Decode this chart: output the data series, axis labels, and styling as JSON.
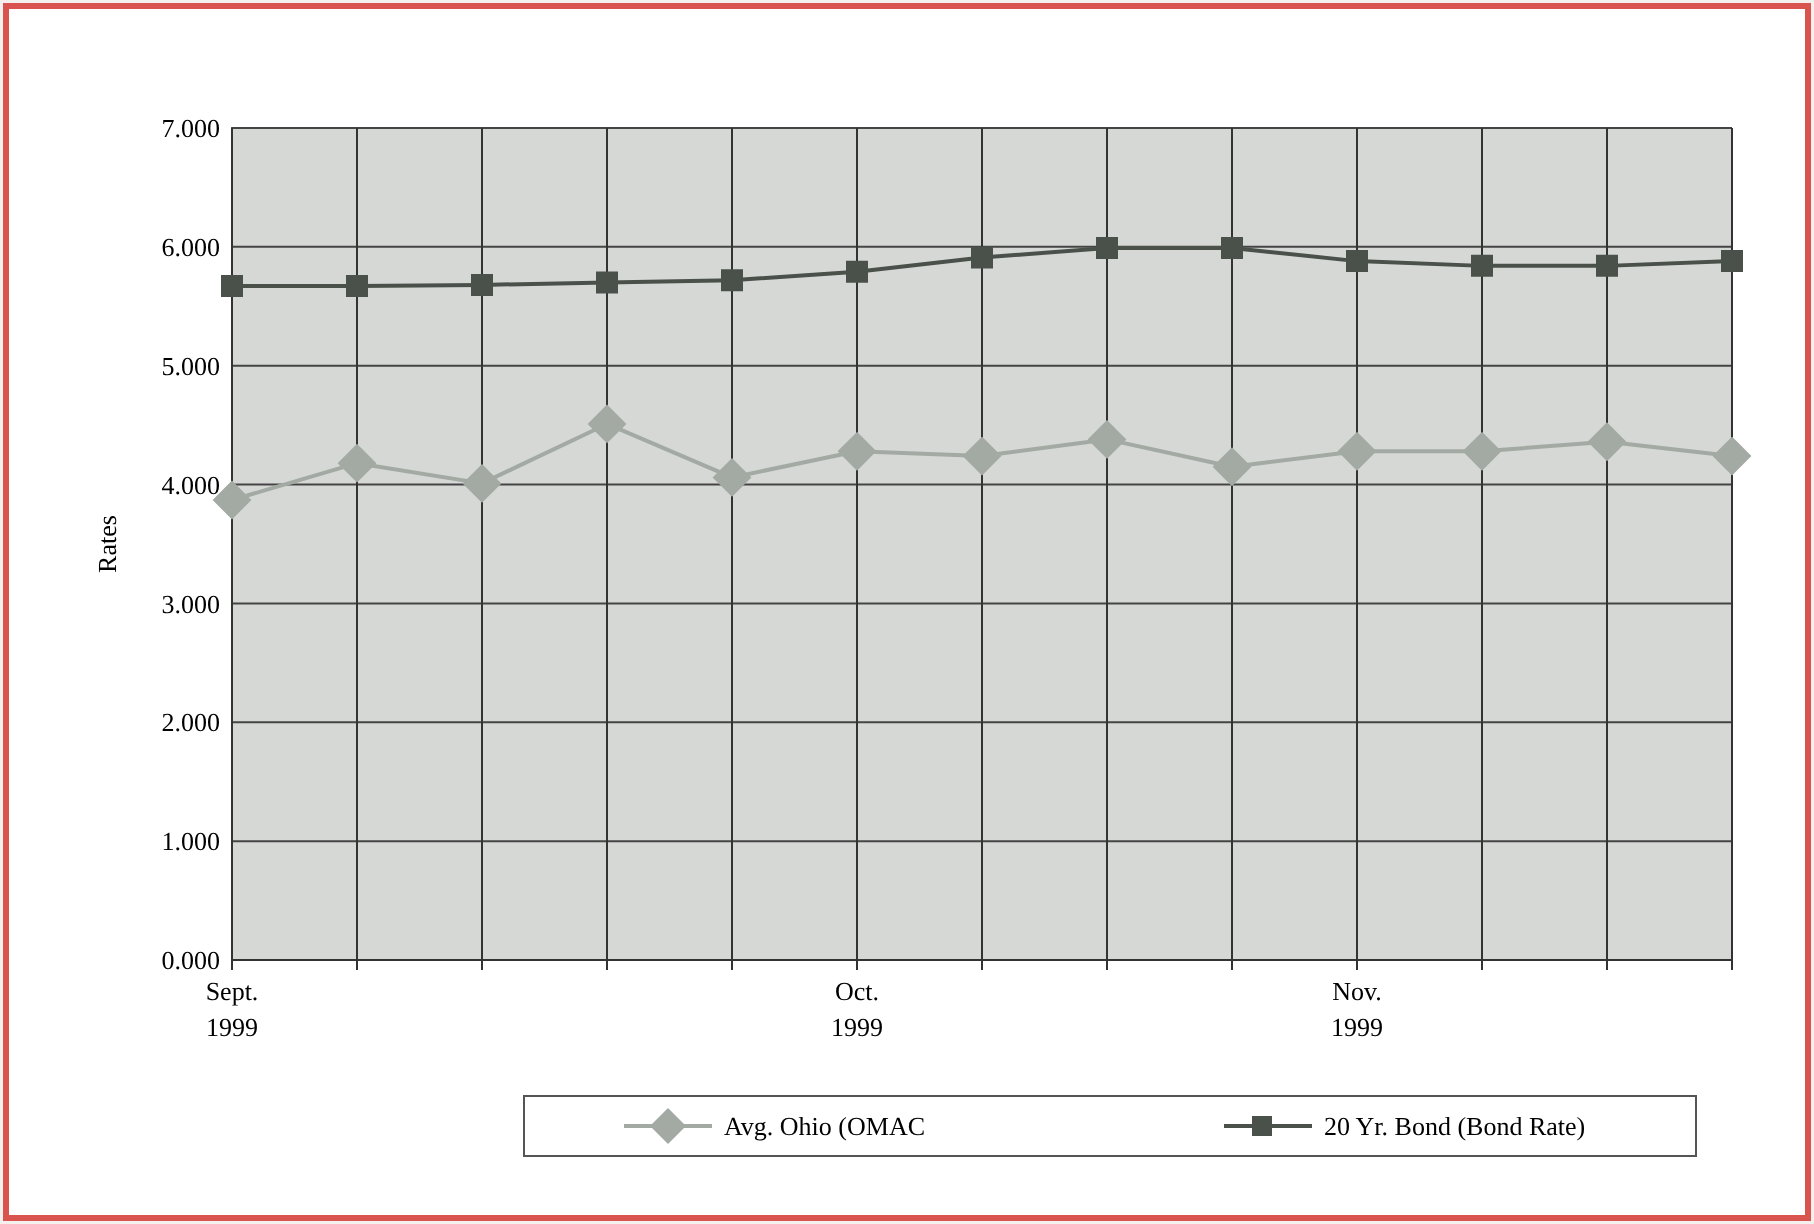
{
  "chart_data": {
    "type": "line",
    "ylabel": "Rates",
    "categories": [
      "Sept.\n1999",
      null,
      null,
      null,
      null,
      "Oct.\n1999",
      null,
      null,
      null,
      "Nov.\n1999",
      null,
      null,
      null
    ],
    "ylim": [
      0,
      7
    ],
    "yticks": [
      {
        "value": 0,
        "label": "0.000"
      },
      {
        "value": 1,
        "label": "1.000"
      },
      {
        "value": 2,
        "label": "2.000"
      },
      {
        "value": 3,
        "label": "3.000"
      },
      {
        "value": 4,
        "label": "4.000"
      },
      {
        "value": 5,
        "label": "5.000"
      },
      {
        "value": 6,
        "label": "6.000"
      },
      {
        "value": 7,
        "label": "7.000"
      }
    ],
    "grid": true,
    "legend": "bottom",
    "series": [
      {
        "name": "Avg. Ohio (OMAC",
        "color": "#a3aaa3",
        "marker": "diamond",
        "values": [
          3.87,
          4.18,
          4.01,
          4.51,
          4.06,
          4.28,
          4.24,
          4.38,
          4.15,
          4.28,
          4.28,
          4.36,
          4.24
        ]
      },
      {
        "name": "20 Yr. Bond (Bond Rate)",
        "color": "#4a504a",
        "marker": "square",
        "values": [
          5.67,
          5.67,
          5.68,
          5.7,
          5.72,
          5.79,
          5.91,
          5.99,
          5.99,
          5.88,
          5.84,
          5.84,
          5.88
        ]
      }
    ]
  }
}
